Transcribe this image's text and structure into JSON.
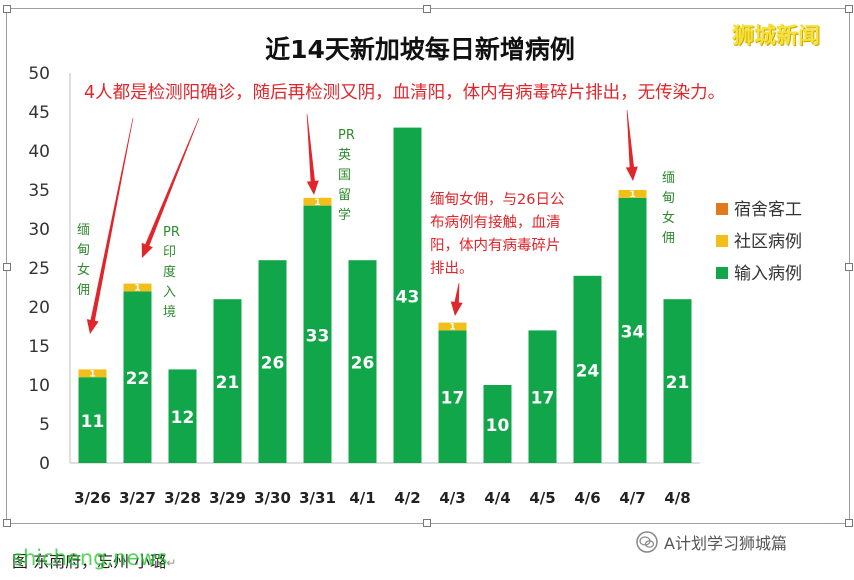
{
  "chart_data": {
    "type": "bar",
    "stacked": true,
    "title": "近14天新加坡每日新增病例",
    "categories": [
      "3/26",
      "3/27",
      "3/28",
      "3/29",
      "3/30",
      "3/31",
      "4/1",
      "4/2",
      "4/3",
      "4/4",
      "4/5",
      "4/6",
      "4/7",
      "4/8"
    ],
    "series": [
      {
        "name": "输入病例",
        "color": "#12a64a",
        "values": [
          11,
          22,
          12,
          21,
          26,
          33,
          26,
          43,
          17,
          10,
          17,
          24,
          34,
          21
        ]
      },
      {
        "name": "社区病例",
        "color": "#f2be1a",
        "values": [
          1,
          1,
          0,
          0,
          0,
          1,
          0,
          0,
          1,
          0,
          0,
          0,
          1,
          0
        ]
      },
      {
        "name": "宿舍客工",
        "color": "#e07b1d",
        "values": [
          0,
          0,
          0,
          0,
          0,
          0,
          0,
          0,
          0,
          0,
          0,
          0,
          0,
          0
        ]
      }
    ],
    "ylim": [
      0,
      50
    ],
    "yticks": [
      0,
      5,
      10,
      15,
      20,
      25,
      30,
      35,
      40,
      45,
      50
    ],
    "grid": false,
    "legend": "right",
    "legend_order": [
      "宿舍客工",
      "社区病例",
      "输入病例"
    ],
    "annotations": [
      {
        "id": "top-note",
        "text": "4人都是检测阳确诊，随后再检测又阴，血清阳，体内有病毒碎片排出，无传染力。",
        "color": "#e0262b"
      },
      {
        "id": "note-0326",
        "text": "缅甸女佣",
        "color": "#2e8b2e",
        "category": "3/26"
      },
      {
        "id": "note-0327",
        "text": "PR印度入境",
        "color": "#2e8b2e",
        "category": "3/27"
      },
      {
        "id": "note-0331",
        "text": "PR英国留学",
        "color": "#2e8b2e",
        "category": "3/31"
      },
      {
        "id": "note-0403",
        "text": "缅甸女佣，与26日公布病例有接触，血清阳，体内有病毒碎片排出。",
        "color": "#e0262b",
        "category": "4/3"
      },
      {
        "id": "note-0407",
        "text": "缅甸女佣",
        "color": "#2e8b2e",
        "category": "4/7"
      }
    ]
  },
  "watermarks": {
    "top_right": "狮城新闻",
    "bottom_left": "shicheng.news",
    "wechat": "A计划学习狮城篇"
  },
  "caption": {
    "text": "图 东南府，忘州 小璐",
    "mark": "↵"
  },
  "colors": {
    "annotation_red": "#e0262b",
    "annotation_green": "#2e8b2e",
    "title": "#111111"
  }
}
